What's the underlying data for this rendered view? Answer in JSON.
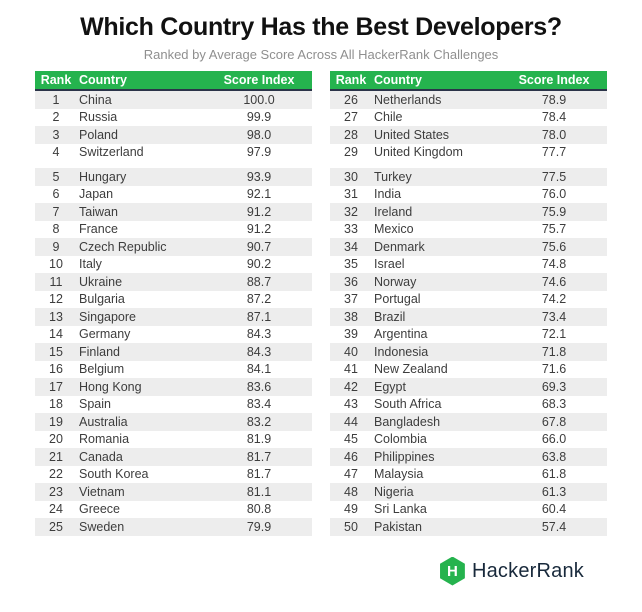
{
  "title": "Which Country Has the Best Developers?",
  "subtitle": "Ranked by Average Score Across All HackerRank Challenges",
  "logo": {
    "brand": "HackerRank",
    "monogram": "H"
  },
  "colors": {
    "brand_green": "#25b34e",
    "header_underline": "#2b3449",
    "row_shade": "#ededed",
    "body_text": "#3d3d3d",
    "subtitle_text": "#8f8f8f",
    "logo_text": "#18293b"
  },
  "chart_data": {
    "type": "table",
    "title": "Which Country Has the Best Developers?",
    "subtitle": "Ranked by Average Score Across All HackerRank Challenges",
    "columns": [
      "Rank",
      "Country",
      "Score Index"
    ],
    "layout": "two side-by-side tables: ranks 1-25 left, ranks 26-50 right; alternating shaded rows; extra gap after 4th data row of each table",
    "rows": [
      [
        1,
        "China",
        100.0
      ],
      [
        2,
        "Russia",
        99.9
      ],
      [
        3,
        "Poland",
        98.0
      ],
      [
        4,
        "Switzerland",
        97.9
      ],
      [
        5,
        "Hungary",
        93.9
      ],
      [
        6,
        "Japan",
        92.1
      ],
      [
        7,
        "Taiwan",
        91.2
      ],
      [
        8,
        "France",
        91.2
      ],
      [
        9,
        "Czech Republic",
        90.7
      ],
      [
        10,
        "Italy",
        90.2
      ],
      [
        11,
        "Ukraine",
        88.7
      ],
      [
        12,
        "Bulgaria",
        87.2
      ],
      [
        13,
        "Singapore",
        87.1
      ],
      [
        14,
        "Germany",
        84.3
      ],
      [
        15,
        "Finland",
        84.3
      ],
      [
        16,
        "Belgium",
        84.1
      ],
      [
        17,
        "Hong Kong",
        83.6
      ],
      [
        18,
        "Spain",
        83.4
      ],
      [
        19,
        "Australia",
        83.2
      ],
      [
        20,
        "Romania",
        81.9
      ],
      [
        21,
        "Canada",
        81.7
      ],
      [
        22,
        "South Korea",
        81.7
      ],
      [
        23,
        "Vietnam",
        81.1
      ],
      [
        24,
        "Greece",
        80.8
      ],
      [
        25,
        "Sweden",
        79.9
      ],
      [
        26,
        "Netherlands",
        78.9
      ],
      [
        27,
        "Chile",
        78.4
      ],
      [
        28,
        "United States",
        78.0
      ],
      [
        29,
        "United Kingdom",
        77.7
      ],
      [
        30,
        "Turkey",
        77.5
      ],
      [
        31,
        "India",
        76.0
      ],
      [
        32,
        "Ireland",
        75.9
      ],
      [
        33,
        "Mexico",
        75.7
      ],
      [
        34,
        "Denmark",
        75.6
      ],
      [
        35,
        "Israel",
        74.8
      ],
      [
        36,
        "Norway",
        74.6
      ],
      [
        37,
        "Portugal",
        74.2
      ],
      [
        38,
        "Brazil",
        73.4
      ],
      [
        39,
        "Argentina",
        72.1
      ],
      [
        40,
        "Indonesia",
        71.8
      ],
      [
        41,
        "New Zealand",
        71.6
      ],
      [
        42,
        "Egypt",
        69.3
      ],
      [
        43,
        "South Africa",
        68.3
      ],
      [
        44,
        "Bangladesh",
        67.8
      ],
      [
        45,
        "Colombia",
        66.0
      ],
      [
        46,
        "Philippines",
        63.8
      ],
      [
        47,
        "Malaysia",
        61.8
      ],
      [
        48,
        "Nigeria",
        61.3
      ],
      [
        49,
        "Sri Lanka",
        60.4
      ],
      [
        50,
        "Pakistan",
        57.4
      ]
    ]
  }
}
